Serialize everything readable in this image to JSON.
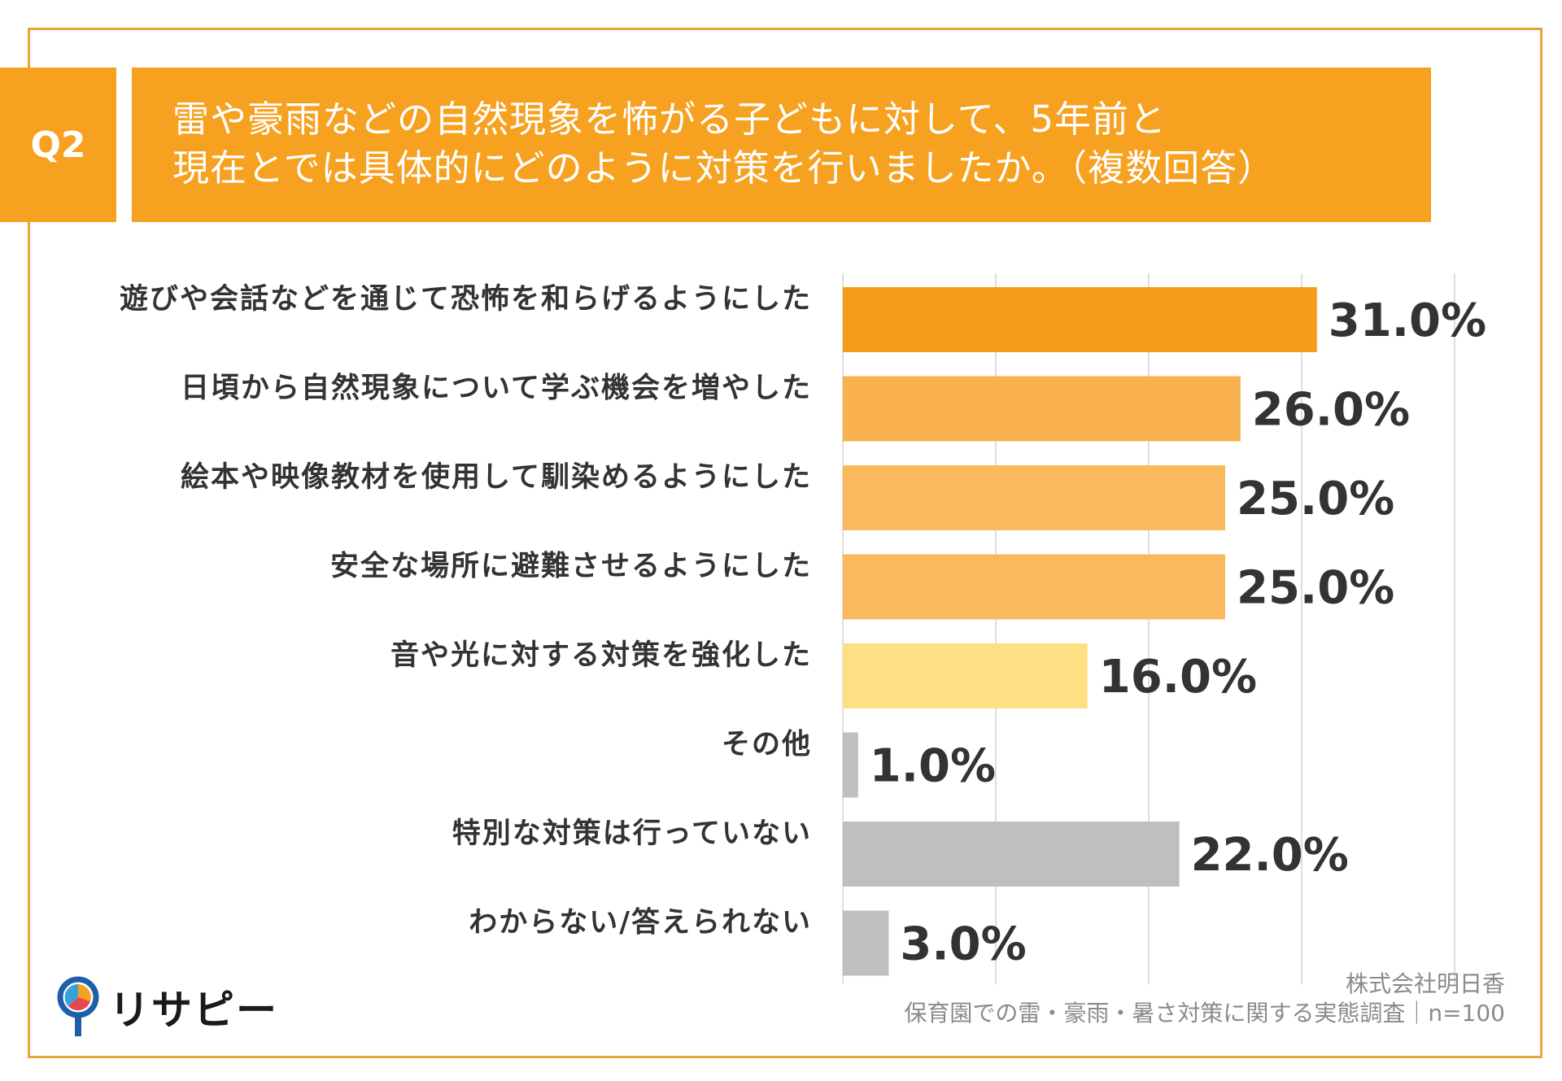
{
  "header": {
    "badge": "Q2",
    "title_line1": "雷や豪雨などの自然現象を怖がる子どもに対して、5年前と",
    "title_line2": "現在とでは具体的にどのように対策を行いましたか。（複数回答）"
  },
  "chart_data": {
    "type": "bar",
    "orientation": "horizontal",
    "title": "雷や豪雨などの自然現象を怖がる子どもに対して、5年前と現在とでは具体的にどのように対策を行いましたか。（複数回答）",
    "categories": [
      "遊びや会話などを通じて恐怖を和らげるようにした",
      "日頃から自然現象について学ぶ機会を増やした",
      "絵本や映像教材を使用して馴染めるようにした",
      "安全な場所に避難させるようにした",
      "音や光に対する対策を強化した",
      "その他",
      "特別な対策は行っていない",
      "わからない/答えられない"
    ],
    "values": [
      31.0,
      26.0,
      25.0,
      25.0,
      16.0,
      1.0,
      22.0,
      3.0
    ],
    "value_labels": [
      "31.0%",
      "26.0%",
      "25.0%",
      "25.0%",
      "16.0%",
      "1.0%",
      "22.0%",
      "3.0%"
    ],
    "colors": [
      "#F59D1B",
      "#F9B14E",
      "#FAB95C",
      "#FAB95C",
      "#FDE084",
      "#BFBFBF",
      "#BFBFBF",
      "#BFBFBF"
    ],
    "xlim": [
      0,
      40
    ],
    "gridlines": [
      0,
      10,
      20,
      30,
      40
    ],
    "unit": "%"
  },
  "footer": {
    "company": "株式会社明日香",
    "survey": "保育園での雷・豪雨・暑さ対策に関する実態調査｜n=100"
  },
  "logo": {
    "text": "リサピー"
  }
}
